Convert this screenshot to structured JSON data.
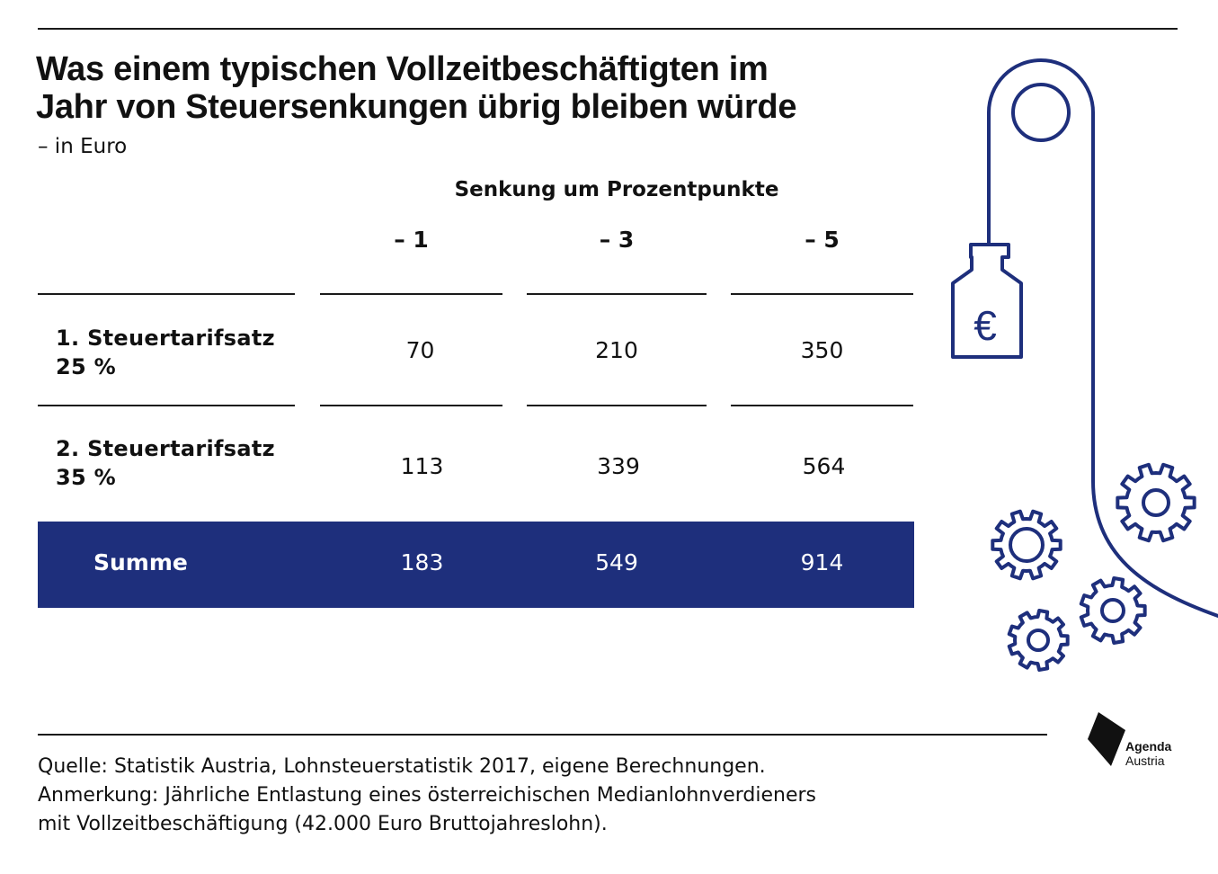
{
  "title_lines": [
    "Was einem typischen Vollzeitbeschäftigten im",
    "Jahr von Steuersenkungen übrig bleiben würde"
  ],
  "subtitle": "– in Euro",
  "chart_data": {
    "type": "table",
    "group_header": "Senkung um Prozentpunkte",
    "columns": [
      "– 1",
      "– 3",
      "– 5"
    ],
    "rows": [
      {
        "label_lines": [
          "1. Steuertarifsatz",
          "25 %"
        ],
        "values": [
          "70",
          "210",
          "350"
        ]
      },
      {
        "label_lines": [
          "2. Steuertarifsatz",
          "35 %"
        ],
        "values": [
          "113",
          "339",
          "564"
        ]
      }
    ],
    "total": {
      "label": "Summe",
      "values": [
        "183",
        "549",
        "914"
      ]
    }
  },
  "footnote_lines": [
    "Quelle: Statistik Austria, Lohnsteuerstatistik 2017, eigene Berechnungen.",
    "Anmerkung: Jährliche Entlastung eines österreichischen Medianlohnverdieners",
    "mit Vollzeitbeschäftigung (42.000 Euro Bruttojahreslohn)."
  ],
  "illustration": {
    "weight_symbol": "€"
  },
  "logo": {
    "line1": "Agenda",
    "line2": "Austria"
  },
  "colors": {
    "accent": "#1e2f7c",
    "text": "#111111",
    "background": "#ffffff"
  }
}
